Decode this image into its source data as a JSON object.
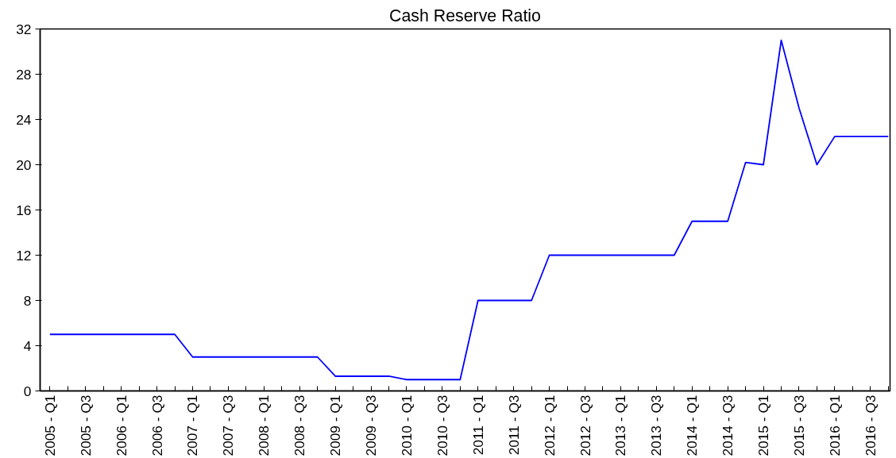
{
  "chart_data": {
    "type": "line",
    "title": "Cash Reserve Ratio",
    "categories": [
      "2005 - Q1",
      null,
      "2005 - Q3",
      null,
      "2006 - Q1",
      null,
      "2006 - Q3",
      null,
      "2007 - Q1",
      null,
      "2007 - Q3",
      null,
      "2008 - Q1",
      null,
      "2008 - Q3",
      null,
      "2009 - Q1",
      null,
      "2009 - Q3",
      null,
      "2010 - Q1",
      null,
      "2010 - Q3",
      null,
      "2011 - Q1",
      null,
      "2011 - Q3",
      null,
      "2012 - Q1",
      null,
      "2012 - Q3",
      null,
      "2013 - Q1",
      null,
      "2013 - Q3",
      null,
      "2014 - Q1",
      null,
      "2014 - Q3",
      null,
      "2015 - Q1",
      null,
      "2015 - Q3",
      null,
      "2016 - Q1",
      null,
      "2016 - Q3",
      null
    ],
    "series": [
      {
        "color": "#0000ff",
        "values": [
          5,
          5,
          5,
          5,
          5,
          5,
          5,
          5,
          3,
          3,
          3,
          3,
          3,
          3,
          3,
          3,
          1.3,
          1.3,
          1.3,
          1.3,
          1,
          1,
          1,
          1,
          8,
          8,
          8,
          8,
          12,
          12,
          12,
          12,
          12,
          12,
          12,
          12,
          15,
          15,
          15,
          20.2,
          20,
          31,
          25,
          20,
          22.5,
          22.5,
          22.5,
          22.5
        ]
      }
    ],
    "ylim": [
      0,
      32
    ],
    "yticks": [
      0,
      4,
      8,
      12,
      16,
      20,
      24,
      28,
      32
    ],
    "grid": false,
    "marker": "none",
    "line_style": "solid"
  }
}
